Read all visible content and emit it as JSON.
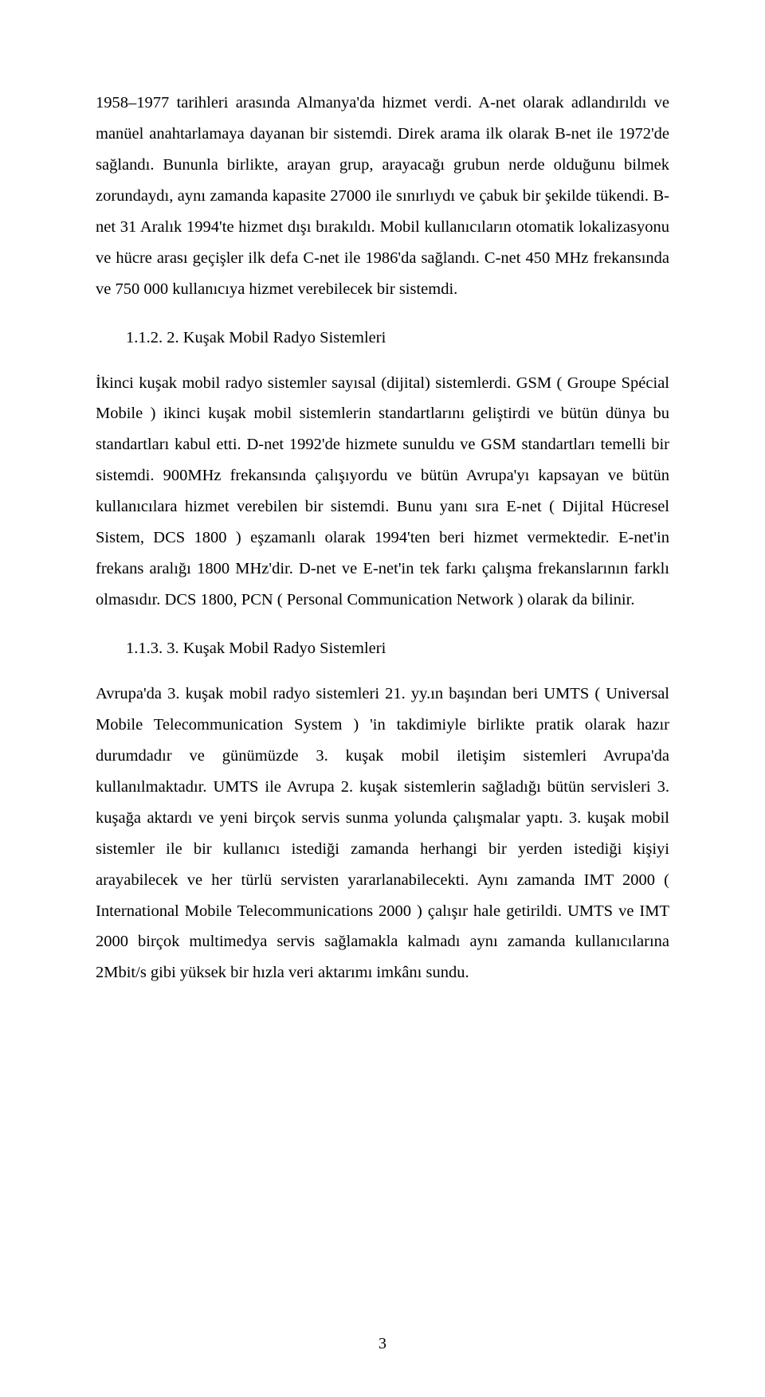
{
  "paragraph1": "1958–1977 tarihleri arasında Almanya'da hizmet verdi. A-net olarak adlandırıldı ve manüel anahtarlamaya dayanan bir sistemdi. Direk arama ilk olarak B-net ile 1972'de sağlandı. Bununla birlikte, arayan grup, arayacağı grubun nerde olduğunu bilmek zorundaydı, aynı zamanda kapasite 27000 ile sınırlıydı ve çabuk bir şekilde tükendi. B-net 31 Aralık 1994'te hizmet dışı bırakıldı. Mobil kullanıcıların otomatik lokalizasyonu ve hücre arası geçişler ilk defa C-net ile 1986'da sağlandı. C-net 450 MHz frekansında ve 750 000 kullanıcıya hizmet verebilecek bir sistemdi.",
  "heading1": "1.1.2. 2. Kuşak Mobil Radyo Sistemleri",
  "paragraph2": "İkinci kuşak mobil radyo sistemler sayısal (dijital) sistemlerdi. GSM ( Groupe Spécial Mobile ) ikinci kuşak mobil sistemlerin standartlarını geliştirdi ve bütün dünya bu standartları kabul etti. D-net 1992'de hizmete sunuldu ve GSM standartları temelli bir sistemdi. 900MHz frekansında çalışıyordu ve bütün Avrupa'yı kapsayan ve bütün kullanıcılara hizmet verebilen bir sistemdi. Bunu yanı sıra E-net ( Dijital Hücresel Sistem, DCS 1800 ) eşzamanlı olarak 1994'ten beri hizmet vermektedir. E-net'in frekans aralığı 1800 MHz'dir. D-net ve E-net'in tek farkı çalışma frekanslarının farklı olmasıdır. DCS 1800, PCN ( Personal Communication Network ) olarak da bilinir.",
  "heading2": "1.1.3.  3. Kuşak Mobil Radyo Sistemleri",
  "paragraph3": "Avrupa'da 3. kuşak mobil radyo sistemleri 21. yy.ın başından beri UMTS ( Universal Mobile Telecommunication System ) 'in takdimiyle birlikte pratik olarak hazır durumdadır ve günümüzde 3. kuşak mobil iletişim sistemleri Avrupa'da kullanılmaktadır. UMTS ile Avrupa 2. kuşak sistemlerin sağladığı bütün servisleri 3. kuşağa aktardı ve yeni birçok servis sunma yolunda çalışmalar yaptı. 3. kuşak mobil sistemler ile bir kullanıcı istediği zamanda herhangi bir yerden istediği kişiyi arayabilecek ve her türlü servisten yararlanabilecekti. Aynı zamanda IMT 2000 ( International Mobile Telecommunications 2000 ) çalışır hale getirildi. UMTS ve IMT 2000 birçok multimedya servis sağlamakla kalmadı aynı zamanda kullanıcılarına 2Mbit/s gibi yüksek bir hızla veri aktarımı imkânı sundu.",
  "pageNumber": "3"
}
